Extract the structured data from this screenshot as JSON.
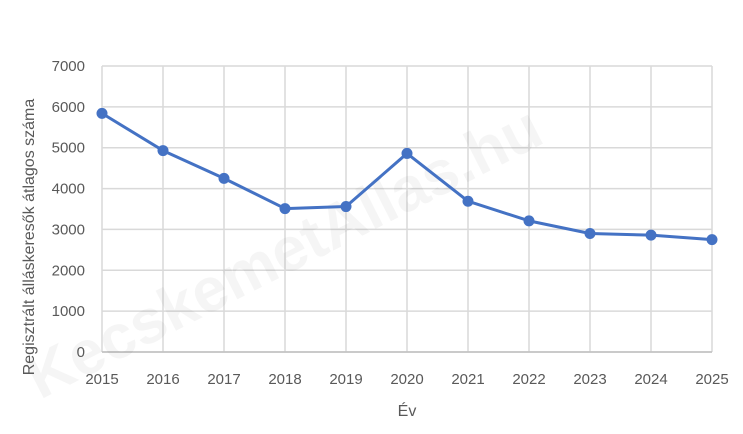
{
  "chart_data": {
    "type": "line",
    "title": "",
    "xlabel": "Év",
    "ylabel": "Regisztrált álláskeresők átlagos száma",
    "categories": [
      "2015",
      "2016",
      "2017",
      "2018",
      "2019",
      "2020",
      "2021",
      "2022",
      "2023",
      "2024",
      "2025"
    ],
    "series": [
      {
        "values": [
          5840,
          4930,
          4250,
          3510,
          3560,
          4860,
          3690,
          3210,
          2900,
          2860,
          2750
        ],
        "color": "#4472C4"
      }
    ],
    "ylim": [
      0,
      7000
    ],
    "yticks": [
      "0",
      "1000",
      "2000",
      "3000",
      "4000",
      "5000",
      "6000",
      "7000"
    ],
    "grid": true,
    "legend": "none",
    "watermark": "KecskemetAllas.hu"
  }
}
